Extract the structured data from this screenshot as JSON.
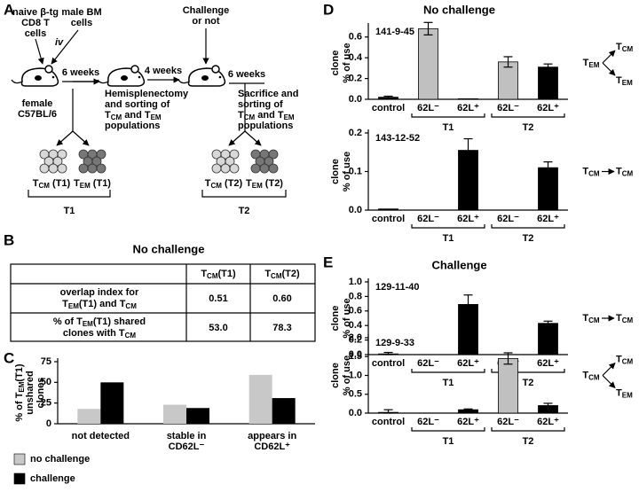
{
  "panels": [
    "A",
    "B",
    "C",
    "D",
    "E"
  ],
  "diagram": {
    "donor_cells": [
      "naive β-tg",
      "CD8 T",
      "cells"
    ],
    "bm_cells": [
      "male BM",
      "cells"
    ],
    "route": "iv",
    "intervals": [
      "6 weeks",
      "4 weeks",
      "6 weeks"
    ],
    "recipient": [
      "female",
      "C57BL/6"
    ],
    "step1": [
      "Hemisplenectomy",
      "and sorting of",
      [
        "T",
        {
          "sub": "CM"
        },
        " and T",
        {
          "sub": "EM"
        }
      ],
      "populations"
    ],
    "challenge": [
      "Challenge",
      "or not"
    ],
    "step2": [
      "Sacrifice and",
      "sorting of",
      [
        "T",
        {
          "sub": "CM"
        },
        " and T",
        {
          "sub": "EM"
        }
      ],
      "populations"
    ],
    "populations": [
      [
        "T",
        {
          "sub": "CM"
        },
        " (T1)"
      ],
      [
        "T",
        {
          "sub": "EM"
        },
        " (T1)"
      ],
      [
        "T",
        {
          "sub": "CM"
        },
        " (T2)"
      ],
      [
        "T",
        {
          "sub": "EM"
        },
        " (T2)"
      ]
    ],
    "timepoints": [
      "T1",
      "T2"
    ]
  },
  "table": {
    "title": "No challenge",
    "header": [
      [
        "T",
        {
          "sub": "CM"
        },
        "(T1)"
      ],
      [
        "T",
        {
          "sub": "CM"
        },
        "(T2)"
      ]
    ],
    "rows": [
      {
        "label": [
          "overlap index for",
          [
            "T",
            {
              "sub": "EM"
            },
            "(T1) and T",
            {
              "sub": "CM"
            }
          ]
        ],
        "cells": [
          "0.51",
          "0.60"
        ]
      },
      {
        "label": [
          [
            "% of T",
            {
              "sub": "EM"
            },
            "(T1) shared"
          ],
          [
            "clones with T",
            {
              "sub": "CM"
            }
          ]
        ],
        "cells": [
          "53.0",
          "78.3"
        ]
      }
    ]
  },
  "chart_data": [
    {
      "type": "grouped_bar",
      "ylabel": [
        [
          "% of T",
          {
            "sub": "EM"
          },
          "(T1)"
        ],
        "unshared",
        "clones"
      ],
      "categories": [
        [
          "not detected"
        ],
        [
          "stable in",
          "CD62L⁻"
        ],
        [
          "appears in",
          "CD62L⁺"
        ]
      ],
      "series": [
        {
          "name": "no challenge",
          "color": "#c8c8c8",
          "values": [
            18,
            23,
            59
          ]
        },
        {
          "name": "challenge",
          "color": "#000000",
          "values": [
            50,
            19,
            31
          ]
        }
      ],
      "ylim": [
        0,
        75
      ],
      "yticks": [
        0,
        25,
        50,
        75
      ],
      "legend": "bottom-left"
    },
    {
      "type": "error_bar",
      "title": "No challenge",
      "clone": "141-9-45",
      "ylabel": [
        "clone",
        "% of use"
      ],
      "categories": [
        "control",
        "62L⁻",
        "62L⁺",
        "62L⁻",
        "62L⁺"
      ],
      "groups": [
        "T1",
        "T2"
      ],
      "values": [
        0.02,
        0.68,
        0.005,
        0.36,
        0.31
      ],
      "errors": [
        0.01,
        0.06,
        null,
        0.05,
        0.03
      ],
      "colors": [
        "#000000",
        "#c0c0c0",
        "#000000",
        "#c0c0c0",
        "#000000"
      ],
      "ylim": [
        0,
        0.7
      ],
      "yticks": [
        {
          "value": 0,
          "label": "0.0"
        },
        0.2,
        0.4,
        0.6
      ],
      "scheme": {
        "from": [
          "T",
          {
            "sub": "EM"
          }
        ],
        "to": [
          [
            "T",
            {
              "sub": "CM"
            }
          ],
          [
            "T",
            {
              "sub": "EM"
            }
          ]
        ]
      }
    },
    {
      "type": "error_bar",
      "clone": "143-12-52",
      "ylabel": [
        "clone",
        "% of use"
      ],
      "categories": [
        "control",
        "62L⁻",
        "62L⁺",
        "62L⁻",
        "62L⁺"
      ],
      "groups": [
        "T1",
        "T2"
      ],
      "values": [
        0.003,
        0,
        0.155,
        0,
        0.11
      ],
      "errors": [
        null,
        null,
        0.03,
        null,
        0.015
      ],
      "colors": [
        "#000000",
        "#c0c0c0",
        "#000000",
        "#c0c0c0",
        "#000000"
      ],
      "ylim": [
        0,
        0.2
      ],
      "yticks": [
        {
          "value": 0,
          "label": "0.0"
        },
        0.1,
        0.2
      ],
      "scheme": {
        "from": [
          "T",
          {
            "sub": "CM"
          }
        ],
        "to": [
          [
            "T",
            {
              "sub": "CM"
            }
          ]
        ]
      }
    },
    {
      "type": "error_bar",
      "title": "Challenge",
      "clone": "129-11-40",
      "ylabel": [
        "clone",
        "% of use"
      ],
      "categories": [
        "control",
        "62L⁻",
        "62L⁺",
        "62L⁻",
        "62L⁺"
      ],
      "groups": [
        "T1",
        "T2"
      ],
      "values": [
        0.01,
        0,
        0.69,
        0,
        0.43
      ],
      "errors": [
        0.02,
        null,
        0.13,
        null,
        0.03
      ],
      "colors": [
        "#000000",
        "#c0c0c0",
        "#000000",
        "#c0c0c0",
        "#000000"
      ],
      "ylim": [
        0,
        1
      ],
      "yticks": [
        {
          "value": 0,
          "label": "0.0"
        },
        0.2,
        0.4,
        0.6,
        0.8,
        {
          "value": 1,
          "label": "1.0"
        }
      ],
      "scheme": {
        "from": [
          "T",
          {
            "sub": "CM"
          }
        ],
        "to": [
          [
            "T",
            {
              "sub": "CM"
            }
          ]
        ]
      }
    },
    {
      "type": "error_bar",
      "clone": "129-9-33",
      "ylabel": [
        "clone",
        "% of use"
      ],
      "categories": [
        "control",
        "62L⁻",
        "62L⁺",
        "62L⁻",
        "62L⁺"
      ],
      "groups": [
        "T1",
        "T2"
      ],
      "values": [
        0.02,
        0,
        0.09,
        1.45,
        0.2
      ],
      "errors": [
        0.07,
        null,
        0.02,
        0.15,
        0.06
      ],
      "colors": [
        "#000000",
        "#c0c0c0",
        "#000000",
        "#c0c0c0",
        "#000000"
      ],
      "ylim": [
        0,
        2
      ],
      "yticks": [
        {
          "value": 0,
          "label": "0.0"
        },
        0.5,
        {
          "value": 1,
          "label": "1.0"
        },
        1.5,
        {
          "value": 2,
          "label": "2.0"
        }
      ],
      "scheme": {
        "from": [
          "T",
          {
            "sub": "CM"
          }
        ],
        "to": [
          [
            "T",
            {
              "sub": "CM"
            }
          ],
          [
            "T",
            {
              "sub": "EM"
            }
          ]
        ]
      }
    }
  ]
}
